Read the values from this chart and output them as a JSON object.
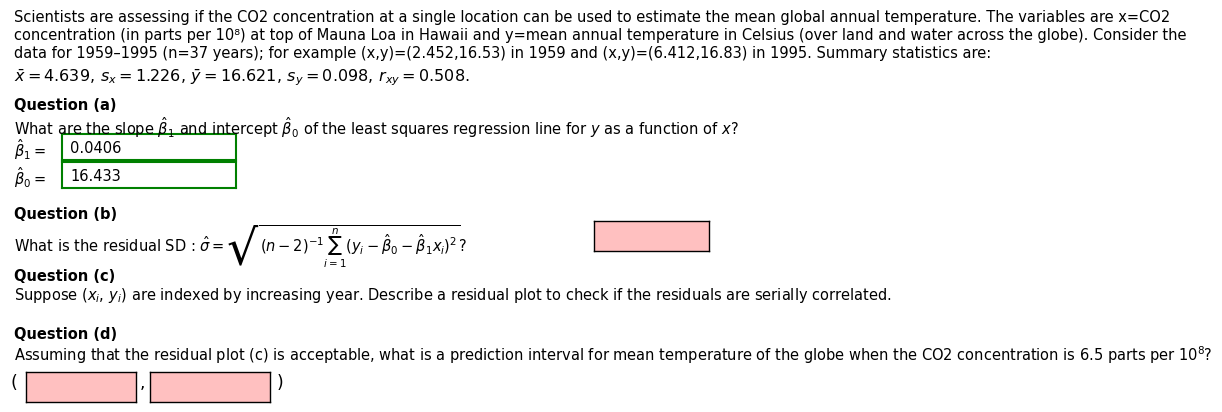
{
  "bg_color": "#ffffff",
  "text_color": "#000000",
  "font_size": 10.5,
  "bold_size": 10.5,
  "line1": "Scientists are assessing if the CO2 concentration at a single location can be used to estimate the mean global annual temperature. The variables are x=CO2",
  "line2": "concentration (in parts per 10⁸) at top of Mauna Loa in Hawaii and y=mean annual temperature in Celsius (over land and water across the globe). Consider the",
  "line3": "data for 1959–1995 (n=37 years); for example (x,y)=(2.452,16.53) in 1959 and (x,y)=(6.412,16.83) in 1995. Summary statistics are:",
  "stats_math": "$\\bar{x} = 4.639,\\, s_x = 1.226,\\, \\bar{y} = 16.621,\\, s_y = 0.098,\\, r_{xy} = 0.508.$",
  "qa_label": "Question (a)",
  "qa_text": "What are the slope $\\hat{\\beta}_1$ and intercept $\\hat{\\beta}_0$ of the least squares regression line for $y$ as a function of $x$?",
  "b1_label": "$\\hat{\\beta}_1=$",
  "b1_value": "0.0406",
  "b0_label": "$\\hat{\\beta}_0=$",
  "b0_value": "16.433",
  "qb_label": "Question (b)",
  "qb_text": "What is the residual SD : $\\hat{\\sigma} = \\sqrt{(n-2)^{-1}\\sum_{i=1}^{n}(y_i - \\hat{\\beta}_0 - \\hat{\\beta}_1 x_i)^2}$?",
  "qc_label": "Question (c)",
  "qc_text": "Suppose $(x_i,\\, y_i)$ are indexed by increasing year. Describe a residual plot to check if the residuals are serially correlated.",
  "qd_label": "Question (d)",
  "qd_text": "Assuming that the residual plot (c) is acceptable, what is a prediction interval for mean temperature of the globe when the CO2 concentration is 6.5 parts per $10^8$?",
  "answer_box_color": "#ffc0c0",
  "green_border": "#008000",
  "black_border": "#000000",
  "white_fill": "#ffffff"
}
